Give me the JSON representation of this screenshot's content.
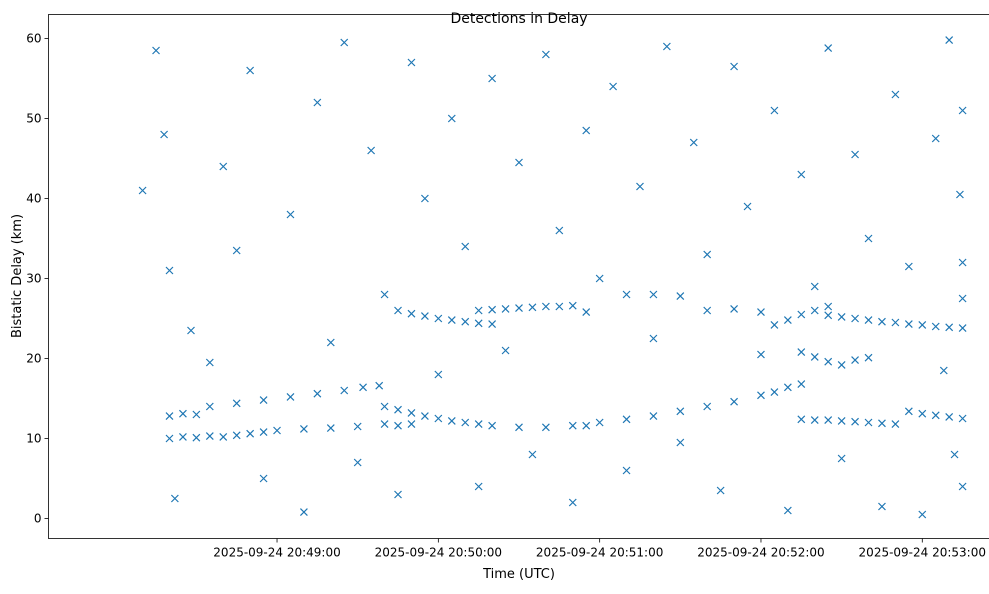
{
  "chart_data": {
    "type": "scatter",
    "title": "Detections in Delay",
    "xlabel": "Time (UTC)",
    "ylabel": "Bistatic Delay (km)",
    "x_axis_kind": "time",
    "xlim": [
      "2025-09-24 20:47:35",
      "2025-09-24 20:53:25"
    ],
    "ylim": [
      -2.5,
      63
    ],
    "x_ticks": [
      "2025-09-24 20:49:00",
      "2025-09-24 20:50:00",
      "2025-09-24 20:51:00",
      "2025-09-24 20:52:00",
      "2025-09-24 20:53:00"
    ],
    "y_ticks": [
      0,
      10,
      20,
      30,
      40,
      50,
      60
    ],
    "grid": false,
    "legend": "none",
    "marker": "x",
    "series": [
      {
        "color": "#1f77b4",
        "points": [
          [
            "2025-09-24 20:48:20",
            10.0
          ],
          [
            "2025-09-24 20:48:25",
            10.2
          ],
          [
            "2025-09-24 20:48:30",
            10.1
          ],
          [
            "2025-09-24 20:48:35",
            10.3
          ],
          [
            "2025-09-24 20:48:40",
            10.2
          ],
          [
            "2025-09-24 20:48:45",
            10.4
          ],
          [
            "2025-09-24 20:48:50",
            10.6
          ],
          [
            "2025-09-24 20:48:55",
            10.8
          ],
          [
            "2025-09-24 20:49:00",
            11.0
          ],
          [
            "2025-09-24 20:49:10",
            11.2
          ],
          [
            "2025-09-24 20:49:20",
            11.3
          ],
          [
            "2025-09-24 20:49:30",
            11.5
          ],
          [
            "2025-09-24 20:48:20",
            12.8
          ],
          [
            "2025-09-24 20:48:25",
            13.1
          ],
          [
            "2025-09-24 20:48:30",
            13.0
          ],
          [
            "2025-09-24 20:48:35",
            14.0
          ],
          [
            "2025-09-24 20:48:45",
            14.4
          ],
          [
            "2025-09-24 20:48:55",
            14.8
          ],
          [
            "2025-09-24 20:49:05",
            15.2
          ],
          [
            "2025-09-24 20:49:15",
            15.6
          ],
          [
            "2025-09-24 20:49:25",
            16.0
          ],
          [
            "2025-09-24 20:49:32",
            16.4
          ],
          [
            "2025-09-24 20:49:38",
            16.6
          ],
          [
            "2025-09-24 20:49:40",
            14.0
          ],
          [
            "2025-09-24 20:49:45",
            13.6
          ],
          [
            "2025-09-24 20:49:50",
            13.2
          ],
          [
            "2025-09-24 20:49:55",
            12.8
          ],
          [
            "2025-09-24 20:50:00",
            12.5
          ],
          [
            "2025-09-24 20:50:05",
            12.2
          ],
          [
            "2025-09-24 20:50:10",
            12.0
          ],
          [
            "2025-09-24 20:50:15",
            11.8
          ],
          [
            "2025-09-24 20:50:20",
            11.6
          ],
          [
            "2025-09-24 20:50:30",
            11.4
          ],
          [
            "2025-09-24 20:50:40",
            11.4
          ],
          [
            "2025-09-24 20:50:50",
            11.6
          ],
          [
            "2025-09-24 20:49:40",
            11.8
          ],
          [
            "2025-09-24 20:49:45",
            11.6
          ],
          [
            "2025-09-24 20:49:50",
            11.8
          ],
          [
            "2025-09-24 20:49:45",
            26.0
          ],
          [
            "2025-09-24 20:49:50",
            25.6
          ],
          [
            "2025-09-24 20:49:55",
            25.3
          ],
          [
            "2025-09-24 20:50:00",
            25.0
          ],
          [
            "2025-09-24 20:50:05",
            24.8
          ],
          [
            "2025-09-24 20:50:10",
            24.6
          ],
          [
            "2025-09-24 20:50:15",
            24.4
          ],
          [
            "2025-09-24 20:50:20",
            24.3
          ],
          [
            "2025-09-24 20:50:15",
            26.0
          ],
          [
            "2025-09-24 20:50:20",
            26.1
          ],
          [
            "2025-09-24 20:50:25",
            26.2
          ],
          [
            "2025-09-24 20:50:30",
            26.3
          ],
          [
            "2025-09-24 20:50:35",
            26.4
          ],
          [
            "2025-09-24 20:50:40",
            26.5
          ],
          [
            "2025-09-24 20:50:45",
            26.5
          ],
          [
            "2025-09-24 20:50:50",
            26.6
          ],
          [
            "2025-09-24 20:50:55",
            25.8
          ],
          [
            "2025-09-24 20:50:55",
            11.6
          ],
          [
            "2025-09-24 20:51:00",
            12.0
          ],
          [
            "2025-09-24 20:51:10",
            12.4
          ],
          [
            "2025-09-24 20:51:20",
            12.8
          ],
          [
            "2025-09-24 20:51:30",
            13.4
          ],
          [
            "2025-09-24 20:51:40",
            14.0
          ],
          [
            "2025-09-24 20:51:50",
            14.6
          ],
          [
            "2025-09-24 20:52:00",
            15.4
          ],
          [
            "2025-09-24 20:52:05",
            15.8
          ],
          [
            "2025-09-24 20:52:10",
            16.4
          ],
          [
            "2025-09-24 20:52:15",
            16.8
          ],
          [
            "2025-09-24 20:51:10",
            28.0
          ],
          [
            "2025-09-24 20:51:20",
            28.0
          ],
          [
            "2025-09-24 20:51:30",
            27.8
          ],
          [
            "2025-09-24 20:51:40",
            26.0
          ],
          [
            "2025-09-24 20:51:50",
            26.2
          ],
          [
            "2025-09-24 20:52:00",
            25.8
          ],
          [
            "2025-09-24 20:52:05",
            24.2
          ],
          [
            "2025-09-24 20:52:10",
            24.8
          ],
          [
            "2025-09-24 20:52:15",
            25.5
          ],
          [
            "2025-09-24 20:52:20",
            26.0
          ],
          [
            "2025-09-24 20:52:25",
            26.5
          ],
          [
            "2025-09-24 20:52:15",
            20.8
          ],
          [
            "2025-09-24 20:52:20",
            20.2
          ],
          [
            "2025-09-24 20:52:25",
            19.6
          ],
          [
            "2025-09-24 20:52:30",
            19.2
          ],
          [
            "2025-09-24 20:52:35",
            19.8
          ],
          [
            "2025-09-24 20:52:40",
            20.1
          ],
          [
            "2025-09-24 20:52:15",
            12.4
          ],
          [
            "2025-09-24 20:52:20",
            12.3
          ],
          [
            "2025-09-24 20:52:25",
            12.3
          ],
          [
            "2025-09-24 20:52:30",
            12.2
          ],
          [
            "2025-09-24 20:52:35",
            12.1
          ],
          [
            "2025-09-24 20:52:40",
            12.0
          ],
          [
            "2025-09-24 20:52:45",
            11.9
          ],
          [
            "2025-09-24 20:52:50",
            11.8
          ],
          [
            "2025-09-24 20:52:25",
            25.4
          ],
          [
            "2025-09-24 20:52:30",
            25.2
          ],
          [
            "2025-09-24 20:52:35",
            25.0
          ],
          [
            "2025-09-24 20:52:40",
            24.8
          ],
          [
            "2025-09-24 20:52:45",
            24.6
          ],
          [
            "2025-09-24 20:52:50",
            24.5
          ],
          [
            "2025-09-24 20:52:55",
            24.3
          ],
          [
            "2025-09-24 20:53:00",
            24.2
          ],
          [
            "2025-09-24 20:53:05",
            24.0
          ],
          [
            "2025-09-24 20:53:10",
            23.9
          ],
          [
            "2025-09-24 20:53:15",
            23.8
          ],
          [
            "2025-09-24 20:52:55",
            13.4
          ],
          [
            "2025-09-24 20:53:00",
            13.1
          ],
          [
            "2025-09-24 20:53:05",
            12.9
          ],
          [
            "2025-09-24 20:53:10",
            12.7
          ],
          [
            "2025-09-24 20:53:15",
            12.5
          ],
          [
            "2025-09-24 20:48:10",
            41.0
          ],
          [
            "2025-09-24 20:48:15",
            58.5
          ],
          [
            "2025-09-24 20:48:18",
            48.0
          ],
          [
            "2025-09-24 20:48:20",
            31.0
          ],
          [
            "2025-09-24 20:48:22",
            2.5
          ],
          [
            "2025-09-24 20:48:28",
            23.5
          ],
          [
            "2025-09-24 20:48:35",
            19.5
          ],
          [
            "2025-09-24 20:48:40",
            44.0
          ],
          [
            "2025-09-24 20:48:45",
            33.5
          ],
          [
            "2025-09-24 20:48:50",
            56.0
          ],
          [
            "2025-09-24 20:48:55",
            5.0
          ],
          [
            "2025-09-24 20:49:05",
            38.0
          ],
          [
            "2025-09-24 20:49:10",
            0.8
          ],
          [
            "2025-09-24 20:49:15",
            52.0
          ],
          [
            "2025-09-24 20:49:20",
            22.0
          ],
          [
            "2025-09-24 20:49:25",
            59.5
          ],
          [
            "2025-09-24 20:49:30",
            7.0
          ],
          [
            "2025-09-24 20:49:35",
            46.0
          ],
          [
            "2025-09-24 20:49:40",
            28.0
          ],
          [
            "2025-09-24 20:49:45",
            3.0
          ],
          [
            "2025-09-24 20:49:50",
            57.0
          ],
          [
            "2025-09-24 20:49:55",
            40.0
          ],
          [
            "2025-09-24 20:50:00",
            18.0
          ],
          [
            "2025-09-24 20:50:05",
            50.0
          ],
          [
            "2025-09-24 20:50:10",
            34.0
          ],
          [
            "2025-09-24 20:50:15",
            4.0
          ],
          [
            "2025-09-24 20:50:20",
            55.0
          ],
          [
            "2025-09-24 20:50:25",
            21.0
          ],
          [
            "2025-09-24 20:50:30",
            44.5
          ],
          [
            "2025-09-24 20:50:35",
            8.0
          ],
          [
            "2025-09-24 20:50:40",
            58.0
          ],
          [
            "2025-09-24 20:50:45",
            36.0
          ],
          [
            "2025-09-24 20:50:50",
            2.0
          ],
          [
            "2025-09-24 20:50:55",
            48.5
          ],
          [
            "2025-09-24 20:51:00",
            30.0
          ],
          [
            "2025-09-24 20:51:05",
            54.0
          ],
          [
            "2025-09-24 20:51:10",
            6.0
          ],
          [
            "2025-09-24 20:51:15",
            41.5
          ],
          [
            "2025-09-24 20:51:20",
            22.5
          ],
          [
            "2025-09-24 20:51:25",
            59.0
          ],
          [
            "2025-09-24 20:51:30",
            9.5
          ],
          [
            "2025-09-24 20:51:35",
            47.0
          ],
          [
            "2025-09-24 20:51:40",
            33.0
          ],
          [
            "2025-09-24 20:51:45",
            3.5
          ],
          [
            "2025-09-24 20:51:50",
            56.5
          ],
          [
            "2025-09-24 20:51:55",
            39.0
          ],
          [
            "2025-09-24 20:52:00",
            20.5
          ],
          [
            "2025-09-24 20:52:05",
            51.0
          ],
          [
            "2025-09-24 20:52:10",
            1.0
          ],
          [
            "2025-09-24 20:52:15",
            43.0
          ],
          [
            "2025-09-24 20:52:20",
            29.0
          ],
          [
            "2025-09-24 20:52:25",
            58.8
          ],
          [
            "2025-09-24 20:52:30",
            7.5
          ],
          [
            "2025-09-24 20:52:35",
            45.5
          ],
          [
            "2025-09-24 20:52:40",
            35.0
          ],
          [
            "2025-09-24 20:52:45",
            1.5
          ],
          [
            "2025-09-24 20:52:50",
            53.0
          ],
          [
            "2025-09-24 20:52:55",
            31.5
          ],
          [
            "2025-09-24 20:53:00",
            0.5
          ],
          [
            "2025-09-24 20:53:05",
            47.5
          ],
          [
            "2025-09-24 20:53:08",
            18.5
          ],
          [
            "2025-09-24 20:53:10",
            59.8
          ],
          [
            "2025-09-24 20:53:12",
            8.0
          ],
          [
            "2025-09-24 20:53:14",
            40.5
          ],
          [
            "2025-09-24 20:53:15",
            32.0
          ],
          [
            "2025-09-24 20:53:15",
            4.0
          ],
          [
            "2025-09-24 20:53:15",
            51.0
          ],
          [
            "2025-09-24 20:53:15",
            27.5
          ]
        ]
      }
    ]
  }
}
